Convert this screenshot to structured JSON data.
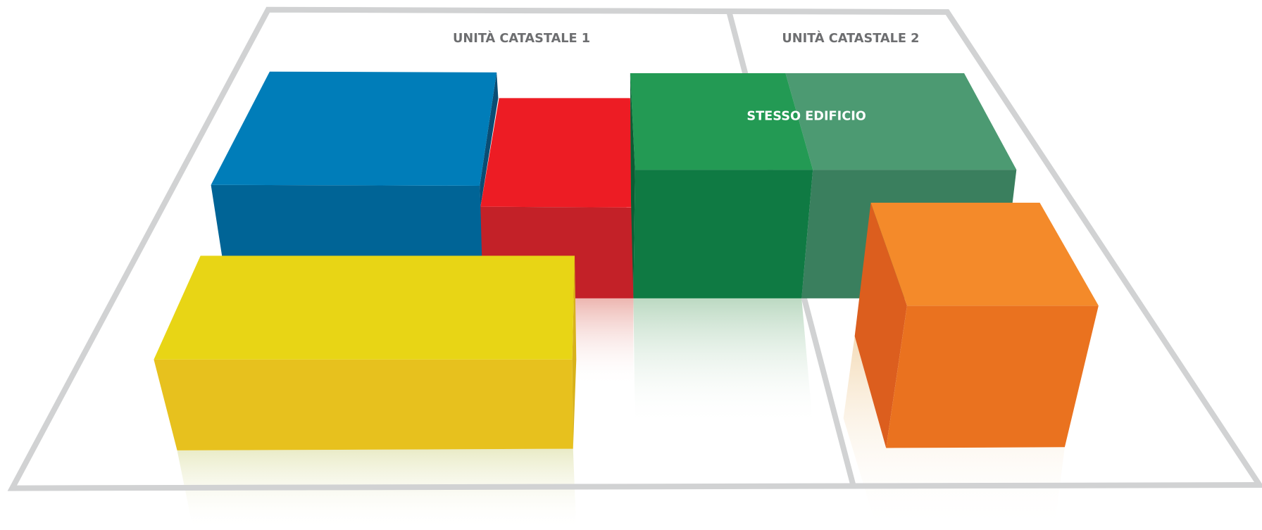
{
  "labels": {
    "unit_1": "UNITÀ CATASTALE 1",
    "unit_2": "UNITÀ CATASTALE 2",
    "same_building": "STESSO EDIFICIO"
  }
}
